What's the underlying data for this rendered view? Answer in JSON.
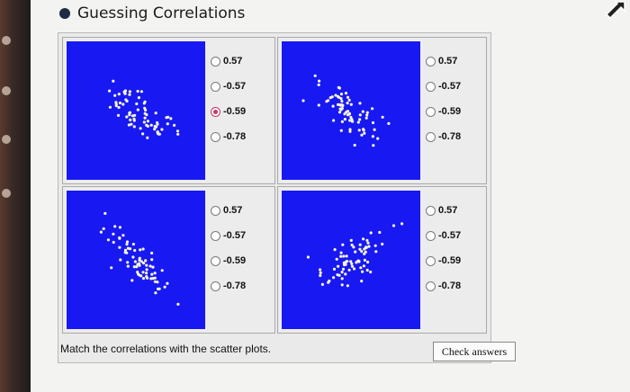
{
  "title": "Guessing Correlations",
  "options": [
    "0.57",
    "-0.57",
    "-0.59",
    "-0.78"
  ],
  "plots": [
    {
      "selected": "-0.59"
    },
    {
      "selected": null
    },
    {
      "selected": null
    },
    {
      "selected": null
    }
  ],
  "instruction": "Match the correlations with the scatter plots.",
  "check_button_label": "Check answers",
  "colors": {
    "plot_background": "#1818f2",
    "point": "#f5f5d8",
    "selected_radio": "#d2336b"
  }
}
